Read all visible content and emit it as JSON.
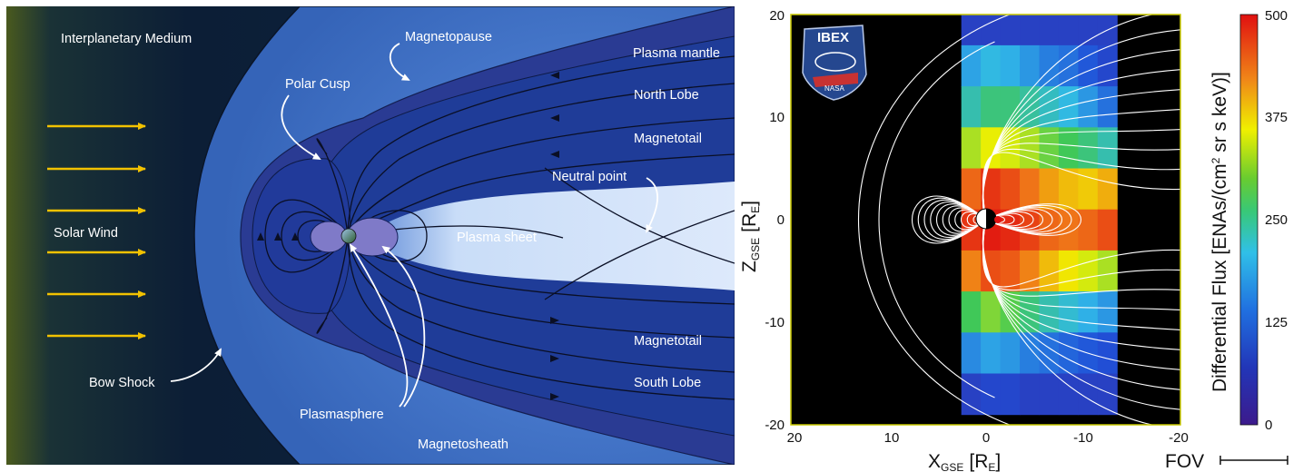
{
  "diagram": {
    "labels": {
      "interplanetary_medium": "Interplanetary Medium",
      "magnetopause": "Magnetopause",
      "plasma_mantle": "Plasma mantle",
      "polar_cusp": "Polar Cusp",
      "north_lobe": "North Lobe",
      "magnetotail_top": "Magnetotail",
      "neutral_point": "Neutral point",
      "solar_wind": "Solar Wind",
      "plasma_sheet": "Plasma sheet",
      "magnetotail_bottom": "Magnetotail",
      "south_lobe": "South Lobe",
      "bow_shock": "Bow Shock",
      "plasmasphere": "Plasmasphere",
      "magnetosheath": "Magnetosheath"
    },
    "colors": {
      "solar_wind_arrow": "#f2c200",
      "space_dark": "#0c1e36",
      "sheath": "#3f70c8",
      "magnetosphere": "#22429a",
      "plasma_sheet": "#cfe2fb"
    }
  },
  "plot": {
    "y_ticks": [
      "20",
      "10",
      "0",
      "-10",
      "-20"
    ],
    "x_ticks": [
      "20",
      "10",
      "0",
      "-10",
      "-20"
    ],
    "y_axis_label_main": "Z",
    "y_axis_label_sub": "GSE",
    "y_axis_unit": "[R",
    "y_axis_unit_sub": "E",
    "y_axis_unit_close": "]",
    "x_axis_label_main": "X",
    "x_axis_label_sub": "GSE",
    "x_axis_unit": "[R",
    "x_axis_unit_sub": "E",
    "x_axis_unit_close": "]",
    "colorbar_label_part1": "Differential Flux [ENAs/(cm",
    "colorbar_label_sup": "2",
    "colorbar_label_part2": " sr s keV)]",
    "colorbar_ticks": [
      "500",
      "375",
      "250",
      "125",
      "0"
    ],
    "fov_label": "FOV",
    "logo_text": "NASA",
    "logo_title": "IBEX"
  },
  "chart_data": {
    "type": "heatmap",
    "xlabel": "XGSE [RE]",
    "ylabel": "ZGSE [RE]",
    "xlim": [
      20,
      -20
    ],
    "ylim": [
      -20,
      20
    ],
    "x_ticks": [
      20,
      10,
      0,
      -10,
      -20
    ],
    "y_ticks": [
      20,
      10,
      0,
      -10,
      -20
    ],
    "colorbar": {
      "label": "Differential Flux [ENAs/(cm2 sr s keV)]",
      "range": [
        0,
        500
      ],
      "ticks": [
        0,
        125,
        250,
        375,
        500
      ],
      "colormap": [
        "#3c1a8c",
        "#2050d8",
        "#30b8e8",
        "#40c858",
        "#f0f000",
        "#f07818",
        "#e01010"
      ]
    },
    "data_columns_x": [
      1.5,
      -0.5,
      -2.5,
      -4.5,
      -6.5,
      -8.5,
      -10.5,
      -12.5
    ],
    "data_rows_z": [
      19,
      15,
      11,
      7,
      3,
      -1,
      -5,
      -9,
      -13,
      -17
    ],
    "values": [
      [
        60,
        60,
        60,
        60,
        60,
        60,
        60,
        60
      ],
      [
        150,
        170,
        160,
        140,
        120,
        110,
        90,
        70
      ],
      [
        200,
        230,
        230,
        210,
        190,
        170,
        140,
        110
      ],
      [
        300,
        330,
        320,
        300,
        270,
        250,
        230,
        200
      ],
      [
        430,
        470,
        450,
        420,
        390,
        370,
        360,
        380
      ],
      [
        470,
        490,
        480,
        460,
        430,
        420,
        430,
        450
      ],
      [
        410,
        450,
        440,
        410,
        370,
        340,
        320,
        300
      ],
      [
        250,
        280,
        260,
        230,
        200,
        180,
        160,
        140
      ],
      [
        130,
        150,
        140,
        120,
        110,
        100,
        90,
        80
      ],
      [
        60,
        70,
        70,
        60,
        60,
        60,
        60,
        60
      ]
    ]
  }
}
